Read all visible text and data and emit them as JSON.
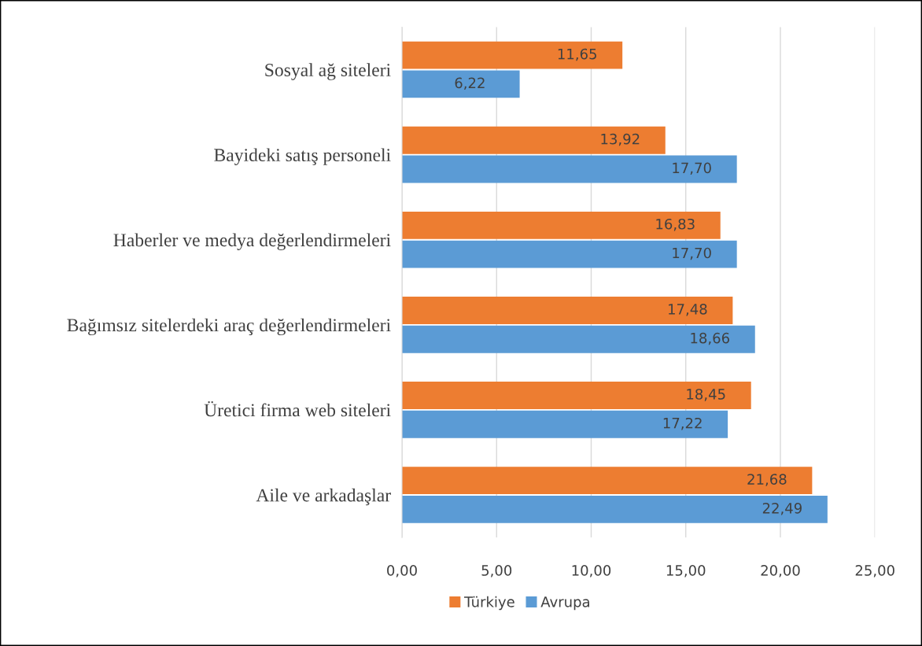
{
  "chart_data": {
    "type": "bar",
    "orientation": "horizontal",
    "categories": [
      "Sosyal ağ siteleri",
      "Bayideki satış personeli",
      "Haberler ve medya değerlendirmeleri",
      "Bağımsız sitelerdeki araç değerlendirmeleri",
      "Üretici firma web siteleri",
      "Aile ve arkadaşlar"
    ],
    "series": [
      {
        "name": "Türkiye",
        "color": "#ed7d31",
        "values": [
          11.65,
          13.92,
          16.83,
          17.48,
          18.45,
          21.68
        ],
        "value_labels": [
          "11,65",
          "13,92",
          "16,83",
          "17,48",
          "18,45",
          "21,68"
        ]
      },
      {
        "name": "Avrupa",
        "color": "#5b9bd5",
        "values": [
          6.22,
          17.7,
          17.7,
          18.66,
          17.22,
          22.49
        ],
        "value_labels": [
          "6,22",
          "17,70",
          "17,70",
          "18,66",
          "17,22",
          "22,49"
        ]
      }
    ],
    "xlim": [
      0,
      25
    ],
    "xticks": [
      {
        "value": 0,
        "label": "0,00"
      },
      {
        "value": 5,
        "label": "5,00"
      },
      {
        "value": 10,
        "label": "10,00"
      },
      {
        "value": 15,
        "label": "15,00"
      },
      {
        "value": 20,
        "label": "20,00"
      },
      {
        "value": 25,
        "label": "25,00"
      }
    ],
    "grid": "x",
    "legend": "bottom"
  }
}
